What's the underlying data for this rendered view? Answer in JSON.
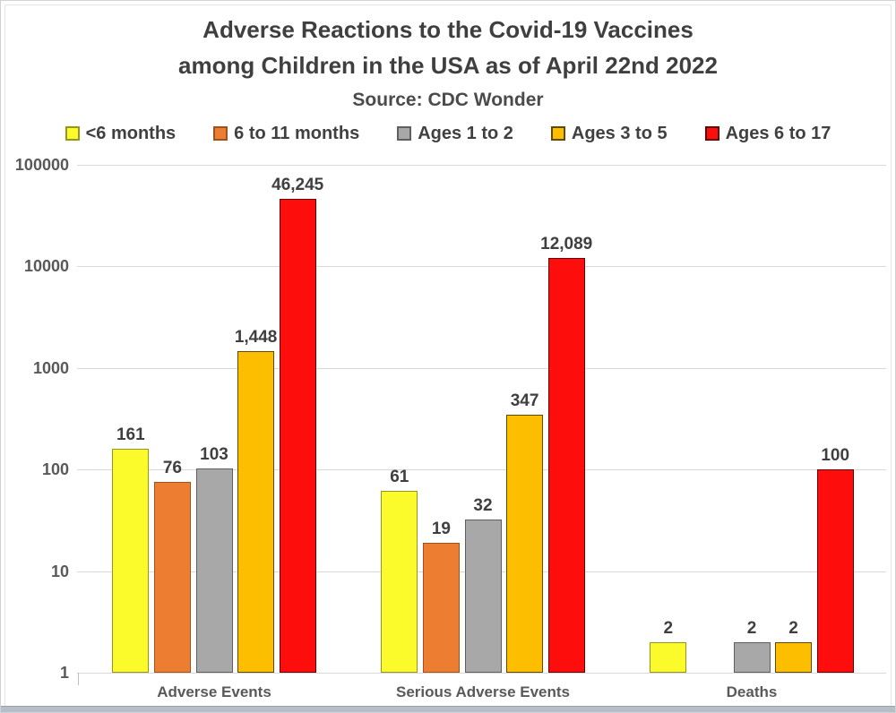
{
  "title": {
    "line1": "Adverse Reactions to the Covid-19 Vaccines",
    "line2": "among Children in the USA as of April 22nd 2022",
    "source": "Source: CDC Wonder"
  },
  "colors": {
    "title_text": "#3f3f3f",
    "axis_text": "#595959",
    "gridline": "#d9d9d9",
    "bottom_strip": "#b6bec8"
  },
  "chart_data": {
    "type": "bar",
    "scale": "log",
    "title": "Adverse Reactions to the Covid-19 Vaccines among Children in the USA as of April 22nd 2022",
    "subtitle": "Source: CDC Wonder",
    "categories": [
      "Adverse Events",
      "Serious Adverse Events",
      "Deaths"
    ],
    "series": [
      {
        "name": "<6 months",
        "color": "#fbfb2c",
        "border": "#96961e",
        "values": [
          161,
          61,
          2
        ],
        "labels": [
          "161",
          "61",
          "2"
        ]
      },
      {
        "name": "6 to 11 months",
        "color": "#ed7d31",
        "border": "#a0521b",
        "values": [
          76,
          19,
          null
        ],
        "labels": [
          "76",
          "19",
          ""
        ]
      },
      {
        "name": "Ages 1 to 2",
        "color": "#a8a8a8",
        "border": "#5f5f5f",
        "values": [
          103,
          32,
          2
        ],
        "labels": [
          "103",
          "32",
          "2"
        ]
      },
      {
        "name": "Ages 3 to 5",
        "color": "#febe00",
        "border": "#5e4a00",
        "values": [
          1448,
          347,
          2
        ],
        "labels": [
          "1,448",
          "347",
          "2"
        ]
      },
      {
        "name": "Ages 6 to 17",
        "color": "#fe0d0d",
        "border": "#650000",
        "values": [
          46245,
          12089,
          100
        ],
        "labels": [
          "46,245",
          "12,089",
          "100"
        ]
      }
    ],
    "y_axis": {
      "min": 1,
      "max": 100000,
      "ticks": [
        1,
        10,
        100,
        1000,
        10000,
        100000
      ],
      "tick_labels": [
        "1",
        "10",
        "100",
        "1000",
        "10000",
        "100000"
      ],
      "gridlines": true
    },
    "legend_position": "top",
    "xlabel": "",
    "ylabel": ""
  }
}
